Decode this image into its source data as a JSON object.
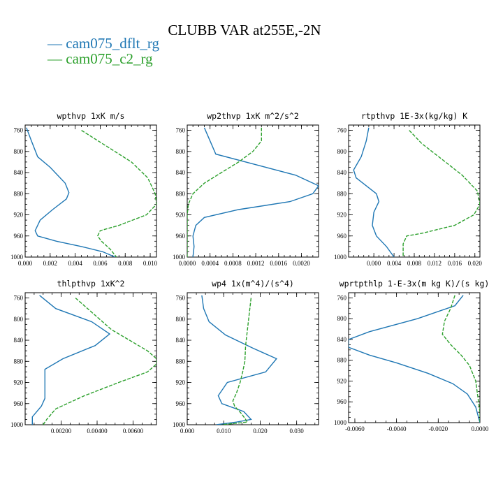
{
  "figure": {
    "title": "CLUBB VAR at255E,-2N",
    "legend": [
      {
        "label": "— cam075_dflt_rg",
        "color": "#1f77b4"
      },
      {
        "label": "— cam075_c2_rg",
        "color": "#2ca02c"
      }
    ]
  },
  "chart_data": [
    {
      "type": "line",
      "title": "wpthvp  1xK m/s",
      "xlim": [
        0.0,
        0.0105
      ],
      "ylim": [
        1000,
        750
      ],
      "xticks": [
        "0.000",
        "0.002",
        "0.004",
        "0.006",
        "0.008",
        "0.010"
      ],
      "xtick_values": [
        0.0,
        0.002,
        0.004,
        0.006,
        0.008,
        0.01
      ],
      "yticks": [
        "760",
        "800",
        "840",
        "880",
        "920",
        "960",
        "1000"
      ],
      "ytick_values": [
        760,
        800,
        840,
        880,
        920,
        960,
        1000
      ],
      "series": [
        {
          "name": "cam075_dflt_rg",
          "color": "#1f77b4",
          "dash": "",
          "x": [
            0.0001,
            0.0005,
            0.001,
            0.002,
            0.0032,
            0.0035,
            0.0033,
            0.0022,
            0.0012,
            0.0008,
            0.001,
            0.0025,
            0.0045,
            0.0062,
            0.0072
          ],
          "y": [
            755,
            780,
            810,
            830,
            860,
            878,
            890,
            910,
            930,
            950,
            960,
            970,
            980,
            990,
            1000
          ]
        },
        {
          "name": "cam075_c2_rg",
          "color": "#2ca02c",
          "dash": "5,2",
          "x": [
            0.0045,
            0.0065,
            0.0085,
            0.0098,
            0.0104,
            0.0105,
            0.0097,
            0.0075,
            0.006,
            0.0058,
            0.0061,
            0.0068,
            0.0073
          ],
          "y": [
            760,
            790,
            820,
            850,
            880,
            900,
            920,
            940,
            950,
            960,
            970,
            985,
            1000
          ]
        }
      ]
    },
    {
      "type": "line",
      "title": "wp2thvp  1xK m^2/s^2",
      "xlim": [
        0.0,
        0.0023
      ],
      "ylim": [
        1000,
        750
      ],
      "xticks": [
        "0.0000",
        "0.0004",
        "0.0008",
        "0.0012",
        "0.0016",
        "0.0020"
      ],
      "xtick_values": [
        0.0,
        0.0004,
        0.0008,
        0.0012,
        0.0016,
        0.002
      ],
      "yticks": [
        "760",
        "800",
        "840",
        "880",
        "920",
        "960",
        "1000"
      ],
      "ytick_values": [
        760,
        800,
        840,
        880,
        920,
        960,
        1000
      ],
      "series": [
        {
          "name": "cam075_dflt_rg",
          "color": "#1f77b4",
          "dash": "",
          "x": [
            0.0003,
            0.0004,
            0.0005,
            0.0012,
            0.0019,
            0.0023,
            0.0022,
            0.0018,
            0.0009,
            0.0003,
            0.00015,
            0.0001,
            0.00012,
            0.0001
          ],
          "y": [
            755,
            780,
            805,
            825,
            845,
            865,
            880,
            895,
            910,
            925,
            940,
            960,
            980,
            1000
          ]
        },
        {
          "name": "cam075_c2_rg",
          "color": "#2ca02c",
          "dash": "5,2",
          "x": [
            0.0013,
            0.0013,
            0.00115,
            0.0009,
            0.0006,
            0.0003,
            0.0001,
            2e-05,
            0.0,
            0.0,
            0.0,
            0.0
          ],
          "y": [
            755,
            780,
            800,
            820,
            840,
            860,
            880,
            900,
            920,
            950,
            980,
            1000
          ]
        }
      ]
    },
    {
      "type": "line",
      "title": "rtpthvp  1E-3x(kg/kg) K",
      "xlim": [
        -0.005,
        0.021
      ],
      "ylim": [
        1000,
        750
      ],
      "xticks": [
        "0.000",
        "0.004",
        "0.008",
        "0.012",
        "0.016",
        "0.020"
      ],
      "xtick_values": [
        0.0,
        0.004,
        0.008,
        0.012,
        0.016,
        0.02
      ],
      "yticks": [
        "760",
        "800",
        "840",
        "880",
        "920",
        "960",
        "1000"
      ],
      "ytick_values": [
        760,
        800,
        840,
        880,
        920,
        960,
        1000
      ],
      "series": [
        {
          "name": "cam075_dflt_rg",
          "color": "#1f77b4",
          "dash": "",
          "x": [
            -0.001,
            -0.0015,
            -0.0025,
            -0.004,
            -0.0035,
            -0.0015,
            0.0005,
            0.001,
            0.0,
            -0.0003,
            0.0005,
            0.0025,
            0.004
          ],
          "y": [
            755,
            780,
            810,
            835,
            850,
            865,
            880,
            895,
            915,
            940,
            960,
            980,
            1000
          ]
        },
        {
          "name": "cam075_c2_rg",
          "color": "#2ca02c",
          "dash": "5,2",
          "x": [
            0.007,
            0.0095,
            0.0135,
            0.0175,
            0.0205,
            0.021,
            0.0198,
            0.016,
            0.0095,
            0.0065,
            0.0058,
            0.0058
          ],
          "y": [
            760,
            785,
            815,
            845,
            875,
            900,
            920,
            940,
            955,
            960,
            975,
            1000
          ]
        }
      ]
    },
    {
      "type": "line",
      "title": "thlpthvp  1xK^2",
      "xlim": [
        0.0,
        0.0073
      ],
      "ylim": [
        1000,
        750
      ],
      "xticks": [
        "0.00200",
        "0.00400",
        "0.00600"
      ],
      "xtick_values": [
        0.002,
        0.004,
        0.006
      ],
      "yticks": [
        "760",
        "800",
        "840",
        "880",
        "920",
        "960",
        "1000"
      ],
      "ytick_values": [
        760,
        800,
        840,
        880,
        920,
        960,
        1000
      ],
      "series": [
        {
          "name": "cam075_dflt_rg",
          "color": "#1f77b4",
          "dash": "",
          "x": [
            0.0008,
            0.0017,
            0.0037,
            0.0047,
            0.0039,
            0.0021,
            0.0011,
            0.0011,
            0.0011,
            0.0009,
            0.0004,
            0.0004
          ],
          "y": [
            755,
            780,
            805,
            828,
            850,
            875,
            895,
            920,
            950,
            965,
            985,
            1000
          ]
        },
        {
          "name": "cam075_c2_rg",
          "color": "#2ca02c",
          "dash": "5,2",
          "x": [
            0.0028,
            0.0038,
            0.0048,
            0.0058,
            0.0068,
            0.0073,
            0.0073,
            0.0068,
            0.0052,
            0.0033,
            0.0017,
            0.0012,
            0.001
          ],
          "y": [
            760,
            790,
            820,
            840,
            860,
            875,
            885,
            900,
            920,
            945,
            970,
            990,
            1000
          ]
        }
      ]
    },
    {
      "type": "line",
      "title": "wp4  1x(m^4)/(s^4)",
      "xlim": [
        0.0,
        0.036
      ],
      "ylim": [
        1000,
        750
      ],
      "xticks": [
        "0.000",
        "0.010",
        "0.020",
        "0.030"
      ],
      "xtick_values": [
        0.0,
        0.01,
        0.02,
        0.03
      ],
      "yticks": [
        "760",
        "800",
        "840",
        "880",
        "920",
        "960",
        "1000"
      ],
      "ytick_values": [
        760,
        800,
        840,
        880,
        920,
        960,
        1000
      ],
      "series": [
        {
          "name": "cam075_dflt_rg",
          "color": "#1f77b4",
          "dash": "",
          "x": [
            0.004,
            0.0045,
            0.006,
            0.0105,
            0.018,
            0.0245,
            0.0215,
            0.011,
            0.0085,
            0.0095,
            0.0155,
            0.0175,
            0.0135,
            0.008
          ],
          "y": [
            755,
            780,
            805,
            830,
            855,
            875,
            900,
            920,
            945,
            960,
            975,
            990,
            995,
            1000
          ]
        },
        {
          "name": "cam075_c2_rg",
          "color": "#2ca02c",
          "dash": "5,2",
          "x": [
            0.0175,
            0.017,
            0.0165,
            0.016,
            0.0158,
            0.0152,
            0.0145,
            0.0135,
            0.0125,
            0.013,
            0.015,
            0.0165,
            0.0095
          ],
          "y": [
            760,
            790,
            820,
            850,
            880,
            900,
            920,
            940,
            955,
            965,
            980,
            995,
            1000
          ]
        }
      ]
    },
    {
      "type": "line",
      "title": "wprtpthlp  1-E-3x(m kg K)/(s kg)",
      "xlim": [
        -0.0063,
        0.0
      ],
      "ylim": [
        1000,
        750
      ],
      "xticks": [
        "-0.0060",
        "-0.0040",
        "-0.0020",
        "0.0000"
      ],
      "xtick_values": [
        -0.006,
        -0.004,
        -0.002,
        0.0
      ],
      "yticks": [
        "760",
        "800",
        "840",
        "880",
        "920",
        "960",
        "1000"
      ],
      "ytick_values": [
        760,
        800,
        840,
        880,
        920,
        960,
        1000
      ],
      "series": [
        {
          "name": "cam075_dflt_rg",
          "color": "#1f77b4",
          "dash": "",
          "x": [
            -0.0008,
            -0.0012,
            -0.003,
            -0.0053,
            -0.0063,
            -0.0063,
            -0.0053,
            -0.004,
            -0.0025,
            -0.0013,
            -0.0006,
            -0.0002,
            0.0
          ],
          "y": [
            755,
            775,
            800,
            825,
            840,
            855,
            870,
            885,
            905,
            925,
            945,
            970,
            1000
          ]
        },
        {
          "name": "cam075_c2_rg",
          "color": "#2ca02c",
          "dash": "5,2",
          "x": [
            -0.0012,
            -0.0014,
            -0.0017,
            -0.0018,
            -0.0014,
            -0.0009,
            -0.0005,
            -0.0002,
            -0.0001,
            0.0,
            0.0
          ],
          "y": [
            755,
            780,
            805,
            830,
            850,
            870,
            890,
            920,
            950,
            980,
            1000
          ]
        }
      ]
    }
  ]
}
